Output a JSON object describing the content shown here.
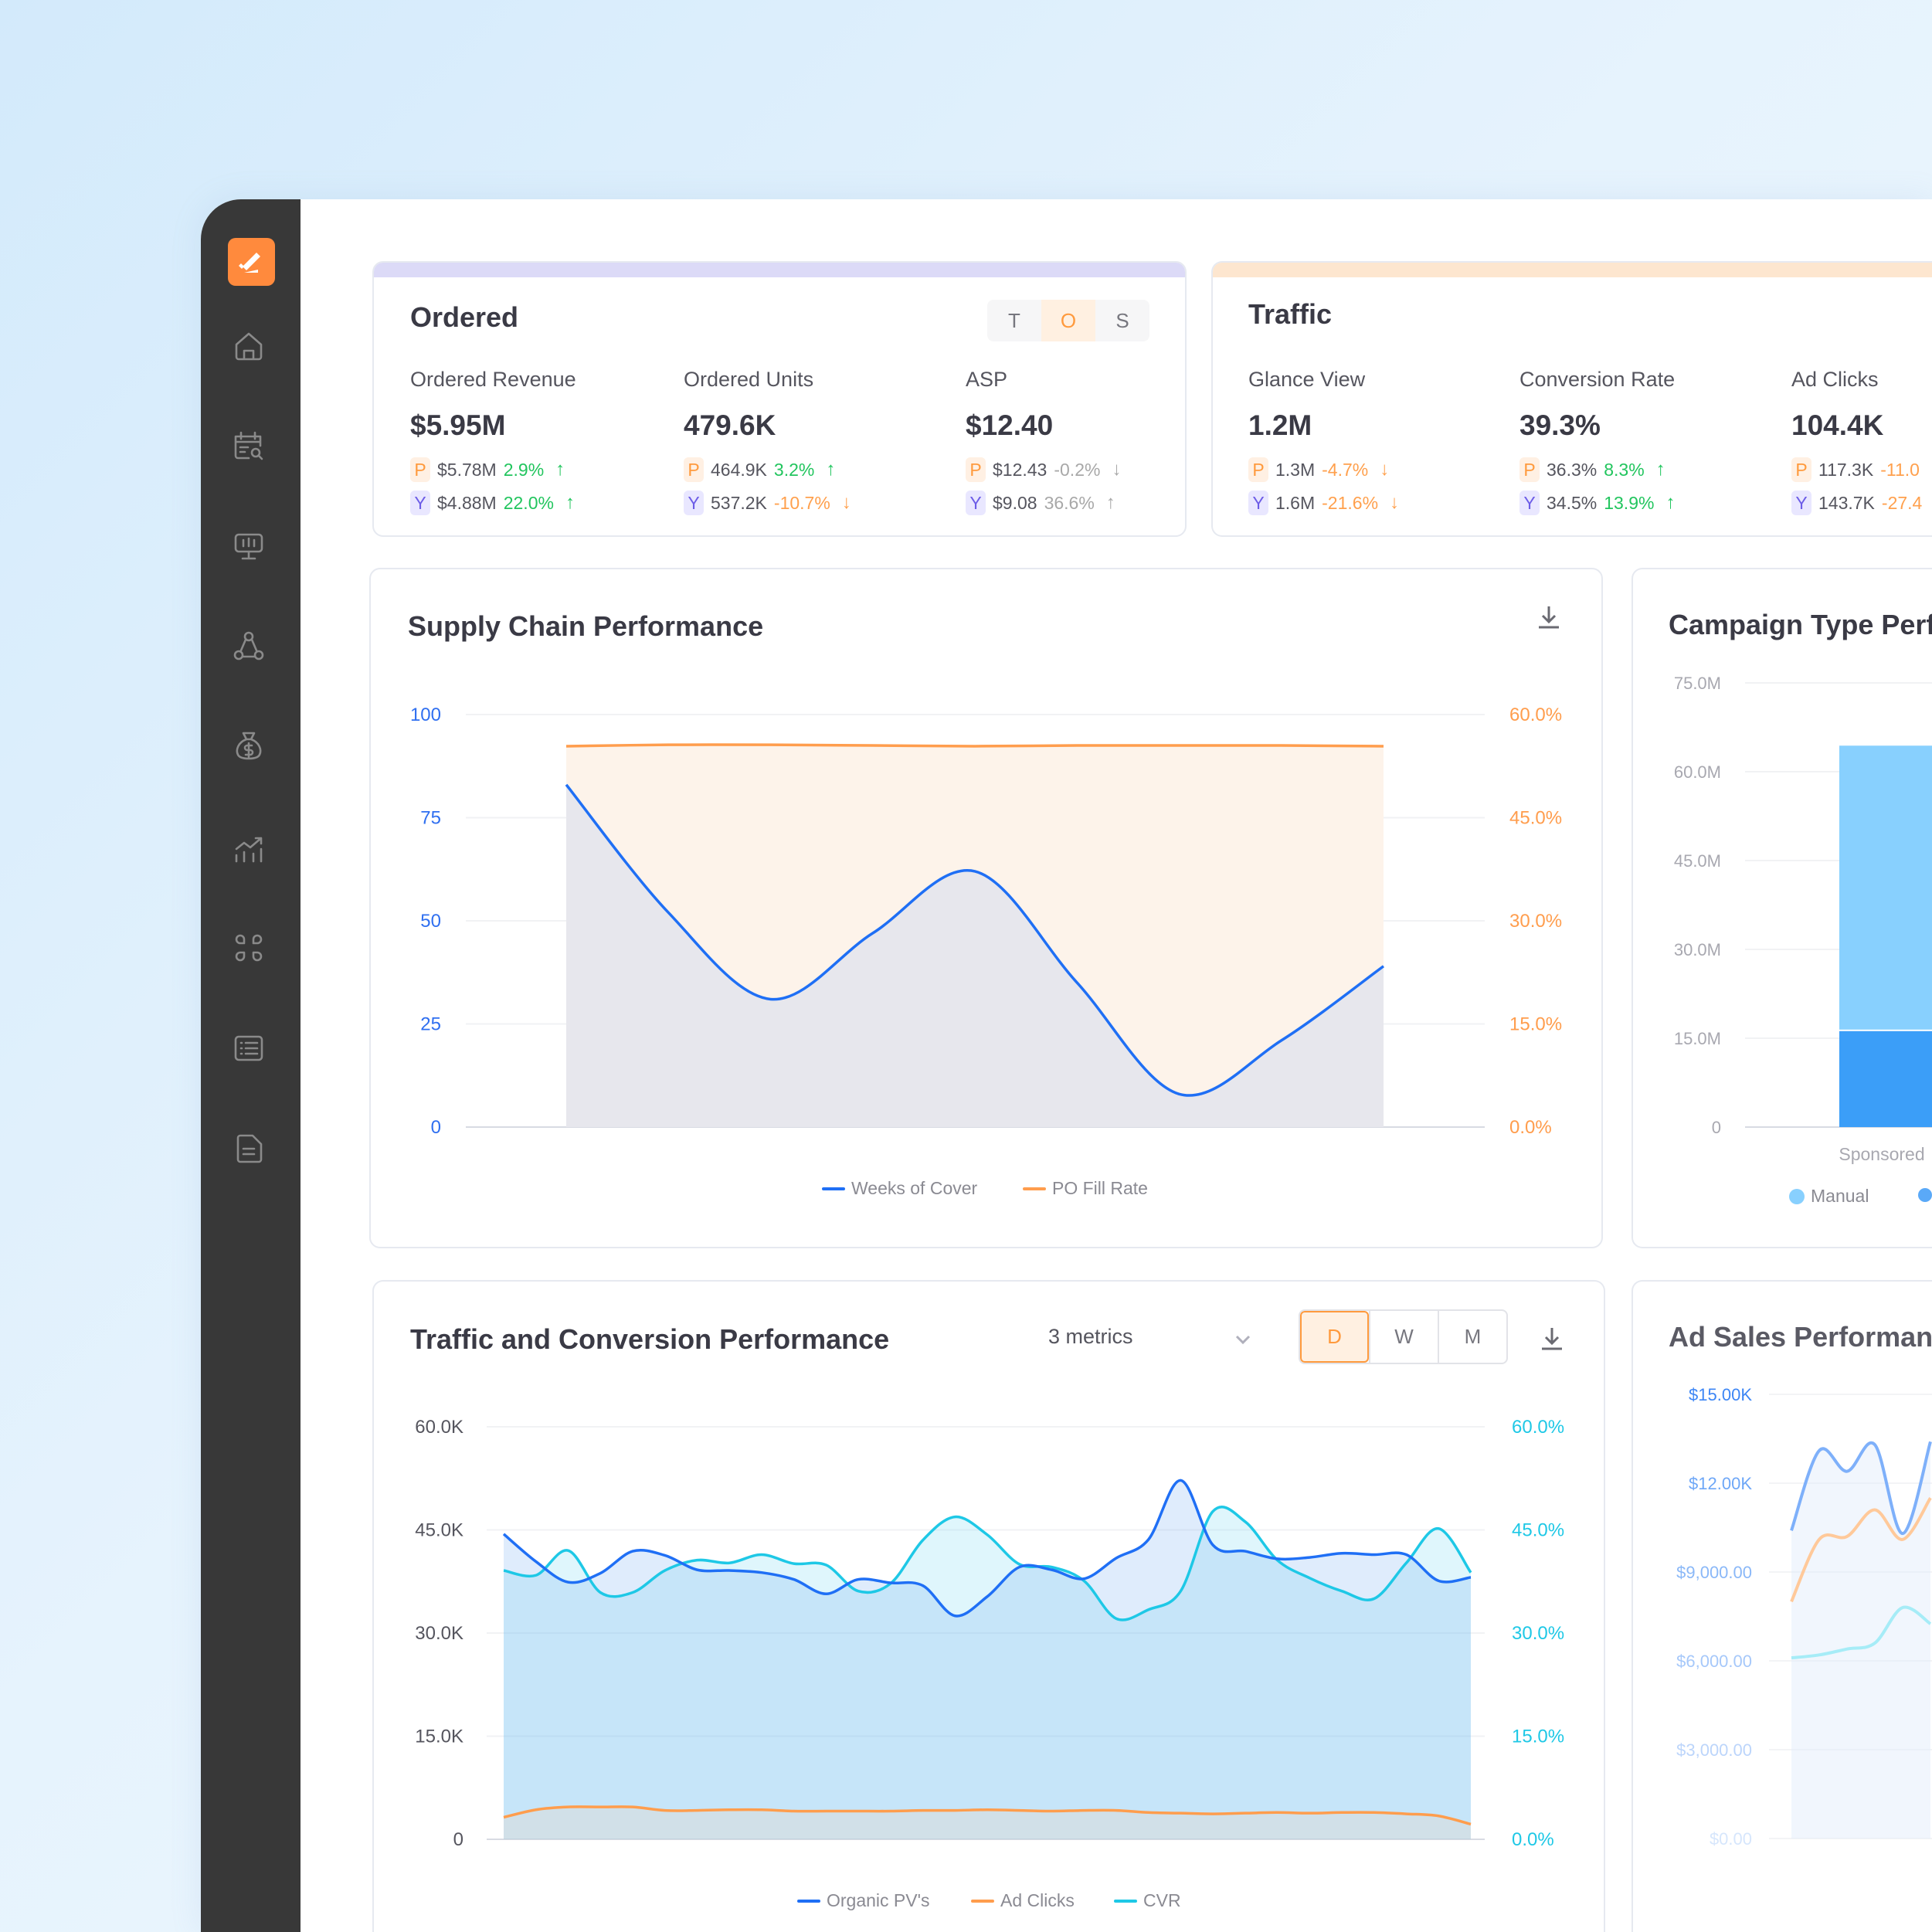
{
  "colors": {
    "accent": "#ff8a3d",
    "sidebar": "#383838",
    "up": "#22c55e",
    "down": "#ffa04d",
    "neutral": "#a8a8a8",
    "blue": "#1f6ff5",
    "orange": "#ff9d4d",
    "cyan": "#1ec8e6",
    "manual": "#88d0fe",
    "dark_bar": "#3b9ef8"
  },
  "sidebar": {
    "logo": "megaphone-logo",
    "items": [
      {
        "icon": "home-icon"
      },
      {
        "icon": "calendar-search-icon"
      },
      {
        "icon": "presentation-chart-icon"
      },
      {
        "icon": "network-icon"
      },
      {
        "icon": "money-bag-icon"
      },
      {
        "icon": "growth-chart-icon"
      },
      {
        "icon": "command-icon"
      },
      {
        "icon": "list-icon"
      },
      {
        "icon": "document-icon"
      }
    ]
  },
  "kpi": {
    "ordered": {
      "title": "Ordered",
      "toggle": [
        {
          "label": "T",
          "active": false
        },
        {
          "label": "O",
          "active": true
        },
        {
          "label": "S",
          "active": false
        }
      ],
      "metrics": [
        {
          "label": "Ordered Revenue",
          "value": "$5.95M",
          "p": {
            "badge": "P",
            "value": "$5.78M",
            "change": "2.9%",
            "trend": "up",
            "tone": "up"
          },
          "y": {
            "badge": "Y",
            "value": "$4.88M",
            "change": "22.0%",
            "trend": "up",
            "tone": "up"
          }
        },
        {
          "label": "Ordered Units",
          "value": "479.6K",
          "p": {
            "badge": "P",
            "value": "464.9K",
            "change": "3.2%",
            "trend": "up",
            "tone": "up"
          },
          "y": {
            "badge": "Y",
            "value": "537.2K",
            "change": "-10.7%",
            "trend": "down",
            "tone": "down"
          }
        },
        {
          "label": "ASP",
          "value": "$12.40",
          "p": {
            "badge": "P",
            "value": "$12.43",
            "change": "-0.2%",
            "trend": "down",
            "tone": "neutral"
          },
          "y": {
            "badge": "Y",
            "value": "$9.08",
            "change": "36.6%",
            "trend": "up",
            "tone": "neutral"
          }
        }
      ]
    },
    "traffic": {
      "title": "Traffic",
      "metrics": [
        {
          "label": "Glance View",
          "value": "1.2M",
          "p": {
            "badge": "P",
            "value": "1.3M",
            "change": "-4.7%",
            "trend": "down",
            "tone": "down"
          },
          "y": {
            "badge": "Y",
            "value": "1.6M",
            "change": "-21.6%",
            "trend": "down",
            "tone": "down"
          }
        },
        {
          "label": "Conversion Rate",
          "value": "39.3%",
          "p": {
            "badge": "P",
            "value": "36.3%",
            "change": "8.3%",
            "trend": "up",
            "tone": "up"
          },
          "y": {
            "badge": "Y",
            "value": "34.5%",
            "change": "13.9%",
            "trend": "up",
            "tone": "up"
          }
        },
        {
          "label": "Ad Clicks",
          "value": "104.4K",
          "p": {
            "badge": "P",
            "value": "117.3K",
            "change": "-11.0",
            "trend": "down",
            "tone": "down"
          },
          "y": {
            "badge": "Y",
            "value": "143.7K",
            "change": "-27.4",
            "trend": "down",
            "tone": "down"
          }
        }
      ]
    }
  },
  "traffic_controls": {
    "metrics_select": "3 metrics",
    "periods": [
      {
        "label": "D",
        "active": true
      },
      {
        "label": "W",
        "active": false
      },
      {
        "label": "M",
        "active": false
      }
    ]
  },
  "chart_data": [
    {
      "type": "area",
      "title": "Supply Chain Performance",
      "grid": true,
      "legend": "bottom",
      "y_left": {
        "range": [
          0,
          100
        ],
        "ticks": [
          "0",
          "25",
          "50",
          "75",
          "100"
        ]
      },
      "y_right": {
        "range": [
          0,
          60
        ],
        "ticks": [
          "0.0%",
          "15.0%",
          "30.0%",
          "45.0%",
          "60.0%"
        ]
      },
      "series": [
        {
          "name": "Weeks of Cover",
          "axis": "left",
          "color": "#1f6ff5",
          "values": [
            83,
            52,
            31,
            47,
            62,
            35,
            8,
            21,
            39
          ]
        },
        {
          "name": "PO Fill Rate",
          "axis": "right",
          "color": "#ff9d4d",
          "values": [
            55.4,
            55.6,
            55.6,
            55.5,
            55.4,
            55.5,
            55.5,
            55.5,
            55.4
          ]
        }
      ]
    },
    {
      "type": "bar",
      "stacked": true,
      "title": "Campaign Type Performance",
      "grid": true,
      "legend": "bottom",
      "ylim": [
        0,
        75
      ],
      "ticks": [
        "0",
        "15.0M",
        "30.0M",
        "45.0M",
        "60.0M",
        "75.0M"
      ],
      "categories": [
        "Sponsored"
      ],
      "series": [
        {
          "name": "",
          "color": "#3b9ef8",
          "values": [
            16.2
          ]
        },
        {
          "name": "Manual",
          "color": "#88d0fe",
          "values": [
            48.2
          ]
        }
      ]
    },
    {
      "type": "area",
      "title": "Traffic and Conversion Performance",
      "grid": true,
      "legend": "bottom",
      "y_left": {
        "range": [
          0,
          60
        ],
        "ticks": [
          "0",
          "15.0K",
          "30.0K",
          "45.0K",
          "60.0K"
        ]
      },
      "y_right": {
        "range": [
          0,
          60
        ],
        "ticks": [
          "0.0%",
          "15.0%",
          "30.0%",
          "45.0%",
          "60.0%"
        ]
      },
      "series": [
        {
          "name": "Organic PV's",
          "axis": "left",
          "color": "#1f6ff5",
          "values": [
            44.4,
            40.4,
            37.4,
            38.7,
            41.9,
            41.3,
            39.2,
            39.1,
            38.8,
            37.8,
            35.7,
            37.8,
            37.3,
            36.9,
            32.5,
            35.3,
            39.6,
            39.2,
            37.9,
            40.9,
            43.6,
            52.2,
            42.8,
            41.9,
            40.8,
            41.0,
            41.6,
            41.4,
            41.4,
            37.6,
            38.1
          ]
        },
        {
          "name": "Ad Clicks",
          "axis": "left",
          "color": "#ff9d4d",
          "values": [
            3.2,
            4.3,
            4.7,
            4.7,
            4.7,
            4.2,
            4.2,
            4.3,
            4.3,
            4.1,
            4.1,
            4.1,
            4.1,
            4.2,
            4.2,
            4.3,
            4.2,
            4.1,
            4.2,
            4.2,
            3.9,
            3.8,
            3.7,
            3.8,
            3.9,
            3.8,
            3.9,
            3.9,
            3.7,
            3.4,
            2.2
          ]
        },
        {
          "name": "CVR",
          "axis": "right",
          "color": "#1ec8e6",
          "values": [
            39.1,
            38.4,
            42.0,
            35.9,
            35.9,
            39.1,
            40.6,
            40.2,
            41.4,
            40.1,
            39.9,
            36.1,
            37.2,
            43.5,
            46.9,
            44.3,
            40.0,
            39.6,
            37.6,
            32.1,
            33.4,
            36.1,
            47.7,
            46.2,
            40.6,
            38.0,
            36.1,
            35.0,
            40.2,
            45.2,
            38.8
          ]
        }
      ]
    },
    {
      "type": "line",
      "title": "Ad Sales Performance",
      "grid": true,
      "ylim": [
        0,
        15000
      ],
      "ticks": [
        "$0.00",
        "$3,000.00",
        "$6,000.00",
        "$9,000.00",
        "$12.00K",
        "$15.00K"
      ],
      "series": [
        {
          "color": "#7eb0fa",
          "values": [
            10400,
            13100,
            12400,
            13300,
            10300,
            13400
          ]
        },
        {
          "color": "#ffc99a",
          "values": [
            8000,
            10100,
            10200,
            11100,
            10100,
            11500
          ]
        },
        {
          "color": "#a6ecf7",
          "values": [
            6100,
            6200,
            6400,
            6600,
            7800,
            7250
          ]
        }
      ]
    }
  ]
}
